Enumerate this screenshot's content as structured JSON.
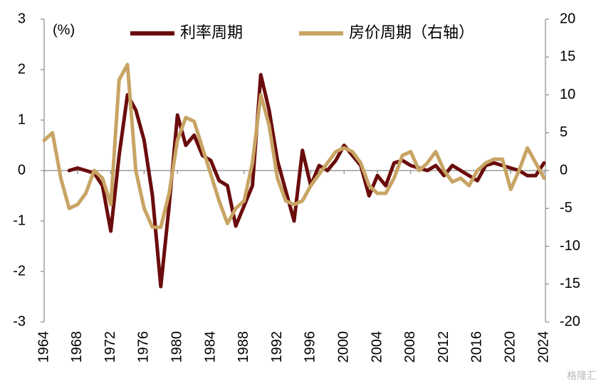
{
  "chart_data": {
    "type": "line",
    "annotations": [
      "(%)",
      "格隆汇"
    ],
    "x": [
      1964,
      1965,
      1966,
      1967,
      1968,
      1969,
      1970,
      1971,
      1972,
      1973,
      1974,
      1975,
      1976,
      1977,
      1978,
      1979,
      1980,
      1981,
      1982,
      1983,
      1984,
      1985,
      1986,
      1987,
      1988,
      1989,
      1990,
      1991,
      1992,
      1993,
      1994,
      1995,
      1996,
      1997,
      1998,
      1999,
      2000,
      2001,
      2002,
      2003,
      2004,
      2005,
      2006,
      2007,
      2008,
      2009,
      2010,
      2011,
      2012,
      2013,
      2014,
      2015,
      2016,
      2017,
      2018,
      2019,
      2020,
      2021,
      2022,
      2023,
      2024
    ],
    "xlim": [
      1964,
      2024
    ],
    "xticks": [
      1964,
      1968,
      1972,
      1976,
      1980,
      1984,
      1988,
      1992,
      1996,
      2000,
      2004,
      2008,
      2012,
      2016,
      2020,
      2024
    ],
    "ylim": [
      -3,
      3
    ],
    "yticks": [
      -3,
      -2,
      -1,
      0,
      1,
      2,
      3
    ],
    "y2lim": [
      -20,
      20
    ],
    "y2ticks": [
      -20,
      -15,
      -10,
      -5,
      0,
      5,
      10,
      15,
      20
    ],
    "series": [
      {
        "name": "利率周期",
        "color": "#6b0c0c",
        "axis": "y",
        "values": [
          null,
          null,
          null,
          0,
          0.05,
          0,
          -0.05,
          -0.3,
          -1.2,
          0.3,
          1.5,
          1.2,
          0.6,
          -0.5,
          -2.3,
          -0.7,
          1.1,
          0.5,
          0.7,
          0.3,
          0.2,
          -0.2,
          -0.3,
          -1.1,
          -0.7,
          -0.3,
          1.9,
          1.2,
          0.2,
          -0.4,
          -1.0,
          0.4,
          -0.3,
          0.1,
          0,
          0.2,
          0.5,
          0.3,
          0.1,
          -0.5,
          -0.1,
          -0.3,
          0.15,
          0.2,
          0.1,
          0.05,
          0,
          0.1,
          -0.1,
          0.1,
          0,
          -0.1,
          -0.2,
          0.1,
          0.15,
          0.1,
          0.05,
          0,
          -0.1,
          -0.1,
          0.15
        ]
      },
      {
        "name": "房价周期（右轴）",
        "color": "#c8a464",
        "axis": "y2",
        "values": [
          4,
          5,
          -1,
          -5,
          -4.5,
          -3,
          0,
          -1,
          -4.5,
          12,
          14,
          0,
          -5,
          -7.5,
          -7.5,
          -3,
          4,
          7,
          6.5,
          3,
          -0.5,
          -4,
          -7,
          -5,
          -4,
          1,
          10,
          6,
          -1,
          -4,
          -4.5,
          -4,
          -2,
          -0.5,
          1,
          2.5,
          3,
          2.5,
          1,
          -2,
          -3,
          -3,
          -1,
          2,
          2.5,
          0,
          1,
          2.5,
          0,
          -1.5,
          -1,
          -2,
          0,
          1,
          1.5,
          1.5,
          -2.5,
          0,
          3,
          1,
          -1
        ]
      }
    ]
  }
}
